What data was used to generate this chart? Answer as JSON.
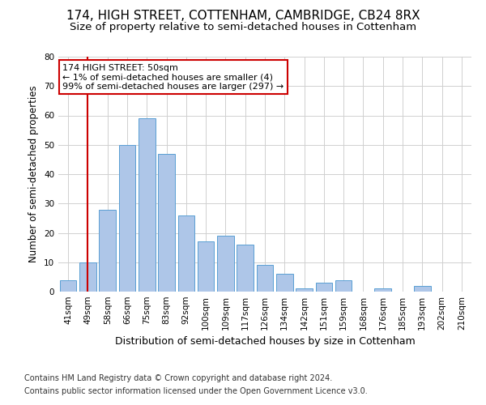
{
  "title1": "174, HIGH STREET, COTTENHAM, CAMBRIDGE, CB24 8RX",
  "title2": "Size of property relative to semi-detached houses in Cottenham",
  "xlabel": "Distribution of semi-detached houses by size in Cottenham",
  "ylabel": "Number of semi-detached properties",
  "footnote1": "Contains HM Land Registry data © Crown copyright and database right 2024.",
  "footnote2": "Contains public sector information licensed under the Open Government Licence v3.0.",
  "categories": [
    "41sqm",
    "49sqm",
    "58sqm",
    "66sqm",
    "75sqm",
    "83sqm",
    "92sqm",
    "100sqm",
    "109sqm",
    "117sqm",
    "126sqm",
    "134sqm",
    "142sqm",
    "151sqm",
    "159sqm",
    "168sqm",
    "176sqm",
    "185sqm",
    "193sqm",
    "202sqm",
    "210sqm"
  ],
  "values": [
    4,
    10,
    28,
    50,
    59,
    47,
    26,
    17,
    19,
    16,
    9,
    6,
    1,
    3,
    4,
    0,
    1,
    0,
    2,
    0,
    0
  ],
  "bar_color": "#aec6e8",
  "bar_edge_color": "#5a9fd4",
  "highlight_bar_index": 1,
  "highlight_line_color": "#cc0000",
  "annotation_text": "174 HIGH STREET: 50sqm\n← 1% of semi-detached houses are smaller (4)\n99% of semi-detached houses are larger (297) →",
  "annotation_box_color": "#ffffff",
  "annotation_box_edge_color": "#cc0000",
  "ylim": [
    0,
    80
  ],
  "yticks": [
    0,
    10,
    20,
    30,
    40,
    50,
    60,
    70,
    80
  ],
  "grid_color": "#d0d0d0",
  "background_color": "#ffffff",
  "title1_fontsize": 11,
  "title2_fontsize": 9.5,
  "xlabel_fontsize": 9,
  "ylabel_fontsize": 8.5,
  "tick_fontsize": 7.5,
  "annotation_fontsize": 8,
  "footnote_fontsize": 7
}
